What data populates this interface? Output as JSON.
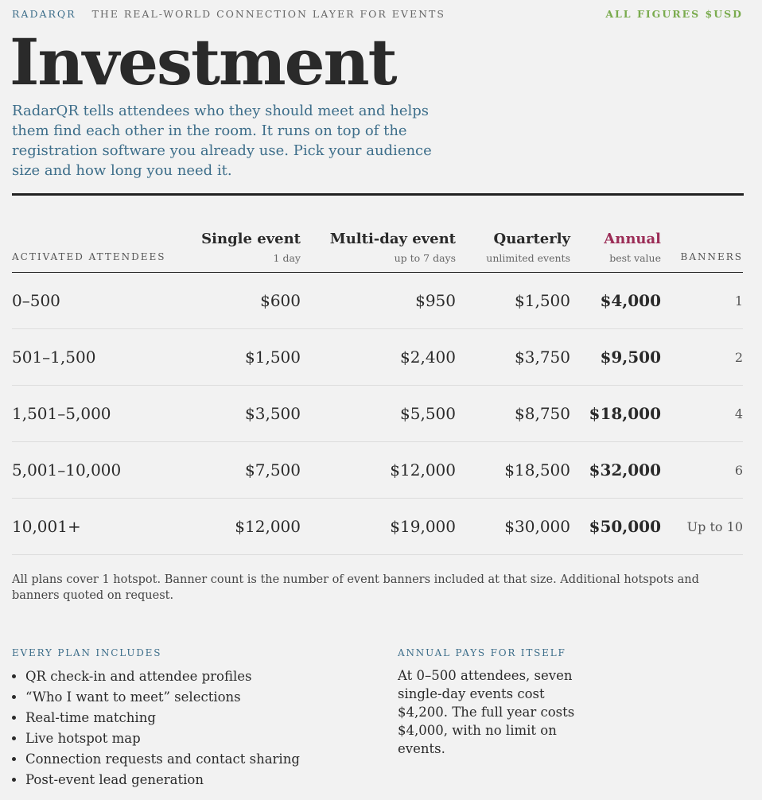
{
  "header": {
    "brand": "RADARQR",
    "tagline": "THE REAL-WORLD CONNECTION LAYER FOR EVENTS",
    "note": "ALL FIGURES $USD"
  },
  "title": "Investment",
  "intro": "RadarQR tells attendees who they should meet and helps them find each other in the room. It runs on top of the registration software you already use. Pick your audience size and how long you need it.",
  "table": {
    "columns": [
      {
        "name": "ACTIVATED ATTENDEES"
      },
      {
        "name": "Single event",
        "sub": "1 day"
      },
      {
        "name": "Multi-day event",
        "sub": "up to 7 days"
      },
      {
        "name": "Quarterly",
        "sub": "unlimited events"
      },
      {
        "name": "Annual",
        "sub": "best value"
      },
      {
        "name": "BANNERS"
      }
    ],
    "rows": [
      [
        "0–500",
        "$600",
        "$950",
        "$1,500",
        "$4,000",
        "1"
      ],
      [
        "501–1,500",
        "$1,500",
        "$2,400",
        "$3,750",
        "$9,500",
        "2"
      ],
      [
        "1,501–5,000",
        "$3,500",
        "$5,500",
        "$8,750",
        "$18,000",
        "4"
      ],
      [
        "5,001–10,000",
        "$7,500",
        "$12,000",
        "$18,500",
        "$32,000",
        "6"
      ],
      [
        "10,001+",
        "$12,000",
        "$19,000",
        "$30,000",
        "$50,000",
        "Up to 10"
      ]
    ]
  },
  "footnote": "All plans cover 1 hotspot. Banner count is the number of event banners included at that size. Additional hotspots and banners quoted on request.",
  "includes": {
    "heading": "EVERY PLAN INCLUDES",
    "items": [
      "QR check-in and attendee profiles",
      "“Who I want to meet” selections",
      "Real-time matching",
      "Live hotspot map",
      "Connection requests and contact sharing",
      "Post-event lead generation"
    ]
  },
  "annual": {
    "heading": "ANNUAL PAYS FOR ITSELF",
    "text": "At 0–500 attendees, seven single-day events cost $4,200. The full year costs $4,000, with no limit on events."
  }
}
